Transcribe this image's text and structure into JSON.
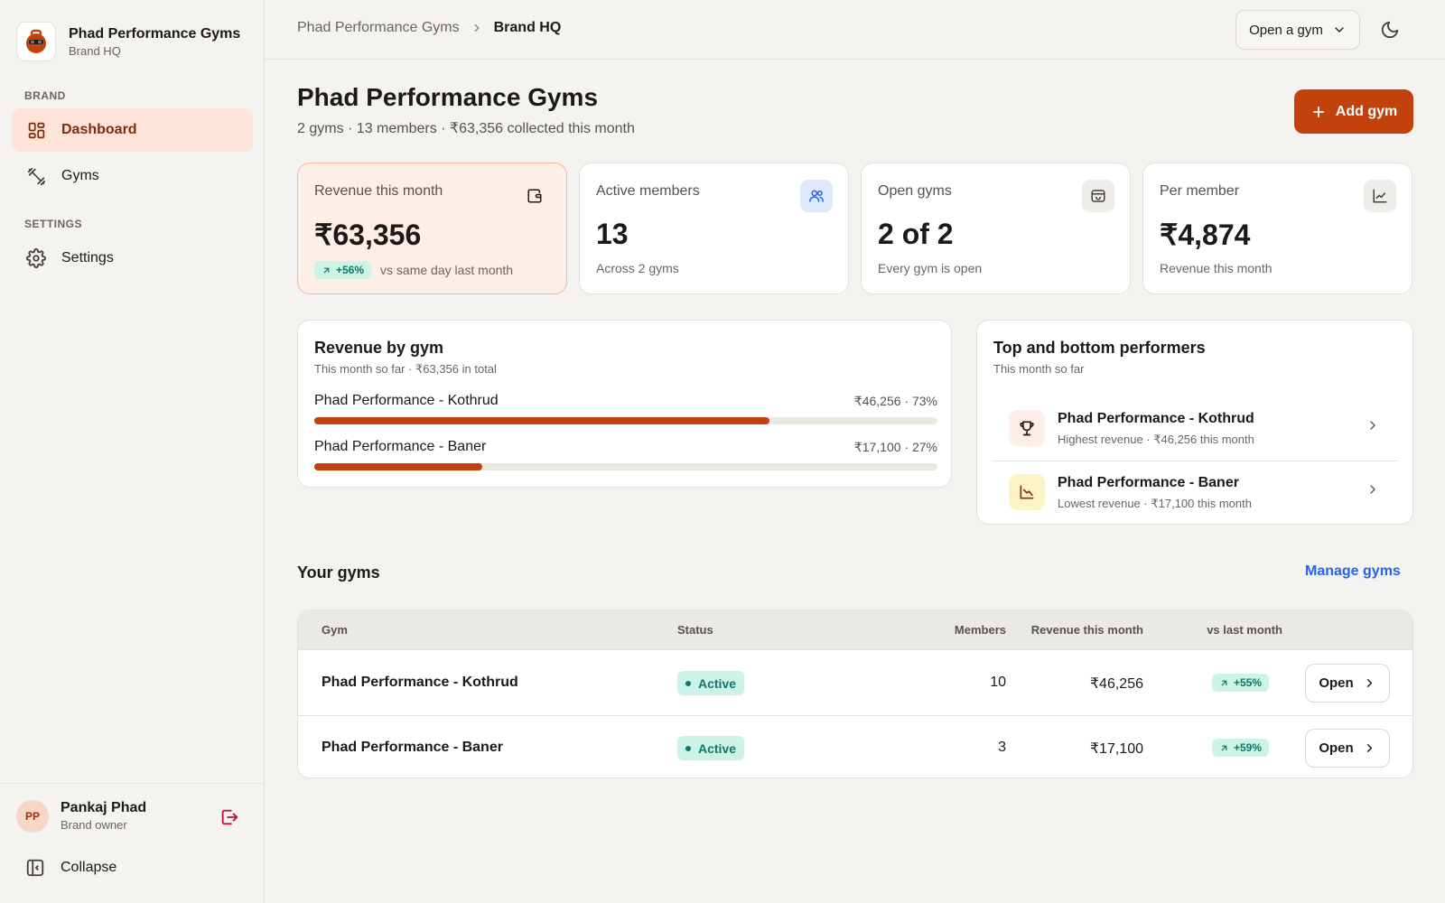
{
  "brand": {
    "name": "Phad Performance Gyms",
    "subtitle": "Brand HQ"
  },
  "sidebar": {
    "brand_section": "BRAND",
    "settings_section": "SETTINGS",
    "items": [
      {
        "label": "Dashboard",
        "icon": "dashboard-icon",
        "active": true
      },
      {
        "label": "Gyms",
        "icon": "dumbbell-icon",
        "active": false
      },
      {
        "label": "Settings",
        "icon": "gear-icon",
        "active": false
      }
    ],
    "user": {
      "initials": "PP",
      "name": "Pankaj Phad",
      "role": "Brand owner"
    },
    "collapse_label": "Collapse"
  },
  "header": {
    "breadcrumb": [
      "Phad Performance Gyms",
      "Brand HQ"
    ],
    "open_gym_label": "Open a gym"
  },
  "page": {
    "title": "Phad Performance Gyms",
    "subtitle": "2 gyms · 13 members · ₹63,356 collected this month",
    "add_button": "Add gym"
  },
  "kpis": [
    {
      "label": "Revenue this month",
      "value": "₹63,356",
      "badge": "+56%",
      "foot": "vs same day last month",
      "icon": "wallet-icon",
      "icon_bg": "#fdeee7"
    },
    {
      "label": "Active members",
      "value": "13",
      "foot": "Across 2 gyms",
      "icon": "users-icon",
      "icon_bg": "#e0e9fb"
    },
    {
      "label": "Open gyms",
      "value": "2 of 2",
      "foot": "Every gym is open",
      "icon": "store-icon",
      "icon_bg": "#efedea"
    },
    {
      "label": "Per member",
      "value": "₹4,874",
      "foot": "Revenue this month",
      "icon": "chart-icon",
      "icon_bg": "#efedea"
    }
  ],
  "revenue_by_gym": {
    "title": "Revenue by gym",
    "subtitle": "This month so far · ₹63,356 in total",
    "rows": [
      {
        "name": "Phad Performance - Kothrud",
        "value": "₹46,256 · 73%",
        "share": 0.73
      },
      {
        "name": "Phad Performance - Baner",
        "value": "₹17,100 · 27%",
        "share": 0.27
      }
    ]
  },
  "performers": {
    "title": "Top and bottom performers",
    "subtitle": "This month so far",
    "items": [
      {
        "name": "Phad Performance - Kothrud",
        "desc": "Highest revenue · ₹46,256 this month",
        "icon": "trophy-icon",
        "icon_bg": "#fdeee7"
      },
      {
        "name": "Phad Performance - Baner",
        "desc": "Lowest revenue · ₹17,100 this month",
        "icon": "trend-down-icon",
        "icon_bg": "#fef3c7"
      }
    ]
  },
  "gyms_table": {
    "title": "Your gyms",
    "manage_link": "Manage gyms",
    "columns": [
      "Gym",
      "Status",
      "Members",
      "Revenue this month",
      "vs last month"
    ],
    "rows": [
      {
        "gym": "Phad Performance - Kothrud",
        "status": "Active",
        "members": "10",
        "revenue": "₹46,256",
        "vs": "+55%",
        "action": "Open"
      },
      {
        "gym": "Phad Performance - Baner",
        "status": "Active",
        "members": "3",
        "revenue": "₹17,100",
        "vs": "+59%",
        "action": "Open"
      }
    ]
  },
  "colors": {
    "accent": "#c2410c",
    "link": "#2563eb",
    "positive": "#0f766e",
    "positive_bg": "#ccf3e5"
  }
}
